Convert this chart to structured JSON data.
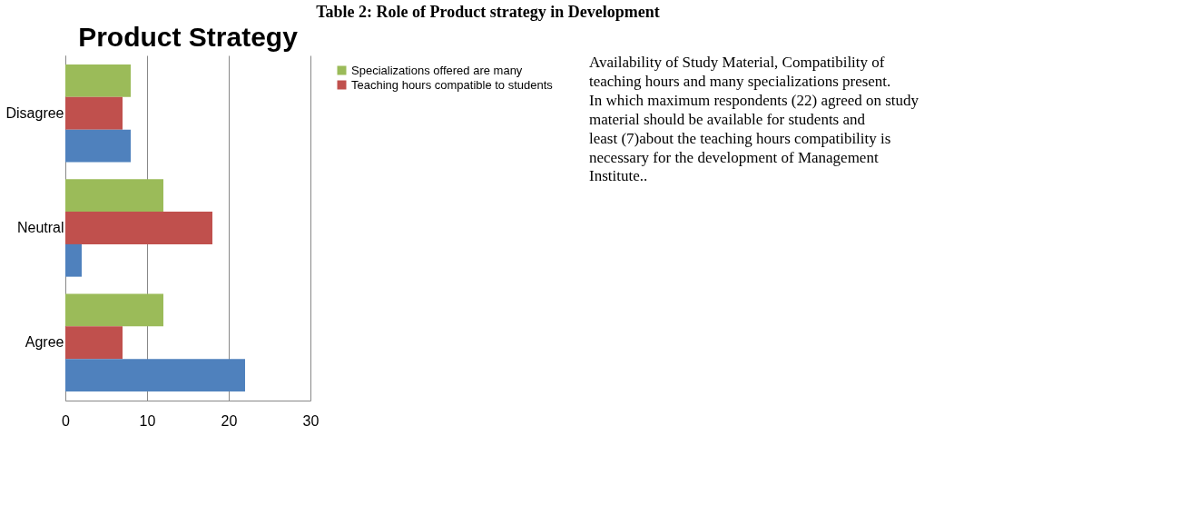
{
  "chart_data": {
    "type": "bar",
    "title": "Product Strategy",
    "orientation": "horizontal",
    "categories": [
      "Disagree",
      "Neutral",
      "Agree"
    ],
    "series": [
      {
        "name": "Specializations offered are many",
        "color": "#9bbb59",
        "values": [
          8,
          12,
          12
        ]
      },
      {
        "name": "Teaching hours compatible to students",
        "color": "#c0504d",
        "values": [
          7,
          18,
          7
        ]
      },
      {
        "color": "#4f81bd",
        "values": [
          8,
          2,
          22
        ]
      }
    ],
    "xlim": [
      0,
      30
    ],
    "xticks": [
      0,
      10,
      20,
      30
    ],
    "grid": "x",
    "legend": "right",
    "annotations": [
      "Table 2: Role of Product strategy in Development",
      "Availability of Study Material, Compatibility of teaching hours and many specializations present. In which maximum respondents (22) agreed on study material should be available for students and least (7)about the teaching hours compatibility is necessary for the development of Management Institute.."
    ]
  }
}
